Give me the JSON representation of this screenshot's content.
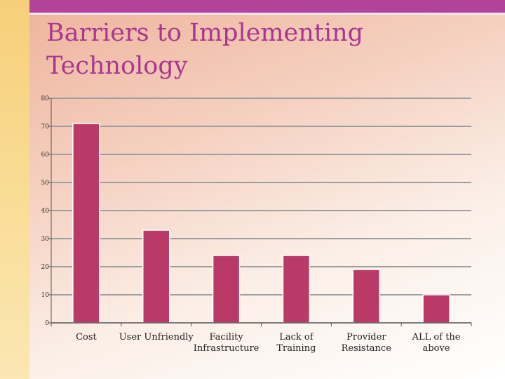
{
  "slide": {
    "title_line1": "Barriers to Implementing",
    "title_line2": "Technology"
  },
  "colors": {
    "bar": "#b93a66",
    "bar_stroke": "#ffffff",
    "grid": "#9e9e9e",
    "axis": "#555555"
  },
  "chart_data": {
    "type": "bar",
    "title": "Barriers to Implementing Technology",
    "xlabel": "",
    "ylabel": "",
    "ylim": [
      0,
      80
    ],
    "yticks": [
      0,
      10,
      20,
      30,
      40,
      50,
      60,
      70,
      80
    ],
    "grid": true,
    "legend": "none",
    "categories": [
      [
        "Cost"
      ],
      [
        "User Unfriendly"
      ],
      [
        "Facility",
        "Infrastructure"
      ],
      [
        "Lack of",
        "Training"
      ],
      [
        "Provider",
        "Resistance"
      ],
      [
        "ALL of the",
        "above"
      ]
    ],
    "values": [
      71,
      33,
      24,
      24,
      19,
      10
    ]
  }
}
